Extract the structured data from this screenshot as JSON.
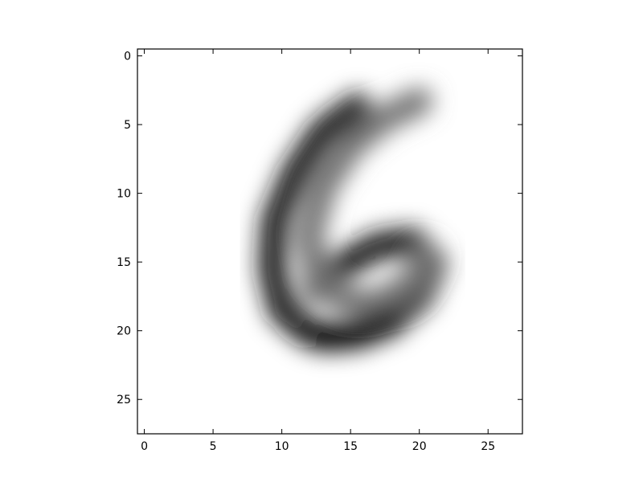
{
  "chart_data": {
    "type": "heatmap",
    "title": "",
    "xlabel": "",
    "ylabel": "",
    "colormap": "gray_r",
    "image_shape": [
      28,
      28
    ],
    "xlim": [
      -0.5,
      27.5
    ],
    "ylim": [
      27.5,
      -0.5
    ],
    "y_axis_inverted": true,
    "grid": false,
    "x_ticks": [
      0,
      5,
      10,
      15,
      20,
      25
    ],
    "y_ticks": [
      0,
      5,
      10,
      15,
      20,
      25
    ],
    "x_tick_labels": [
      "0",
      "5",
      "10",
      "15",
      "20",
      "25"
    ],
    "y_tick_labels": [
      "0",
      "5",
      "10",
      "15",
      "20",
      "25"
    ],
    "description_of_content": "blurred handwritten digit six",
    "strokes": [
      {
        "points": [
          [
            15.5,
            3.7
          ],
          [
            13.0,
            5.5
          ],
          [
            11.0,
            8.5
          ],
          [
            9.5,
            12.0
          ],
          [
            9.3,
            15.5
          ],
          [
            10.0,
            18.5
          ],
          [
            12.0,
            20.2
          ],
          [
            14.5,
            20.4
          ],
          [
            17.5,
            19.5
          ],
          [
            20.0,
            17.5
          ],
          [
            21.0,
            15.0
          ],
          [
            19.5,
            13.5
          ],
          [
            17.0,
            13.8
          ],
          [
            14.5,
            15.2
          ],
          [
            12.5,
            17.0
          ]
        ],
        "intensity": 0.9
      },
      {
        "points": [
          [
            20.0,
            3.3
          ],
          [
            17.5,
            4.5
          ],
          [
            15.0,
            6.5
          ],
          [
            13.0,
            9.5
          ],
          [
            12.0,
            13.0
          ],
          [
            12.5,
            16.0
          ],
          [
            14.5,
            17.8
          ],
          [
            17.0,
            18.0
          ],
          [
            19.5,
            16.5
          ],
          [
            20.5,
            14.5
          ]
        ],
        "intensity": 0.55
      },
      {
        "points": [
          [
            13.0,
            20.5
          ],
          [
            15.5,
            20.3
          ],
          [
            18.0,
            19.3
          ]
        ],
        "intensity": 1.0
      }
    ]
  }
}
